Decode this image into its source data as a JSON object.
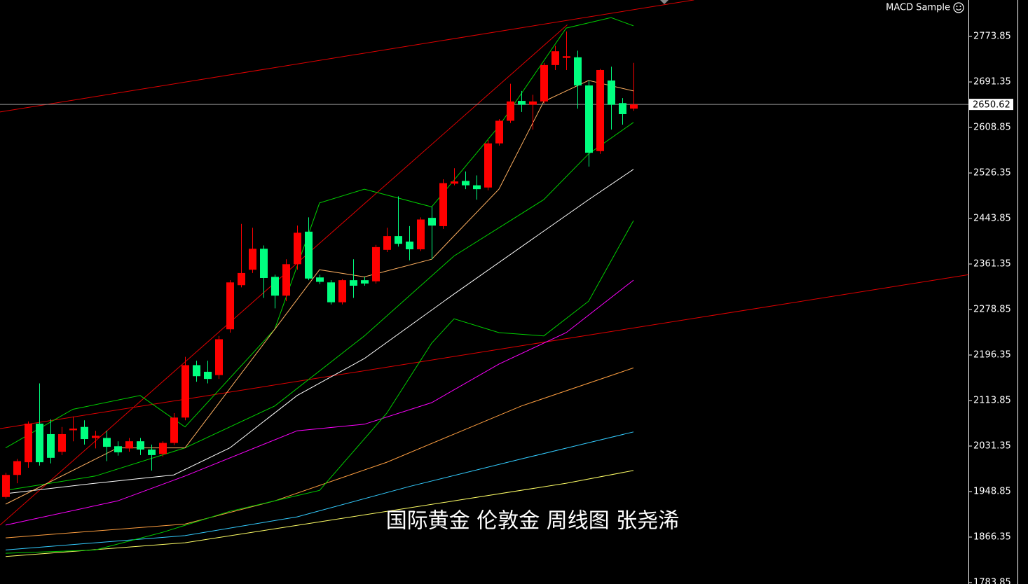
{
  "chart_data": {
    "type": "candlestick",
    "title": "MACD Sample",
    "annotation": "国际黄金 伦敦金 周线图 张尧浠",
    "xlim": [
      -0.5,
      85.875
    ],
    "ylim": [
      1781.3,
      2839.9
    ],
    "yticks": [
      2773.85,
      2691.35,
      2608.85,
      2526.35,
      2443.85,
      2361.35,
      2278.85,
      2196.35,
      2113.85,
      2031.35,
      1948.85,
      1866.35,
      1783.85
    ],
    "last_price": 2650.62,
    "up_color": "#ff0000",
    "down_color": "#00ff7f",
    "open": [
      1939,
      1979,
      2002,
      2072,
      2053,
      2021,
      2060,
      2066,
      2046,
      2046,
      2031,
      2027,
      2040,
      2025,
      2017,
      2037,
      2083,
      2178,
      2166,
      2160,
      2243,
      2323,
      2351,
      2389,
      2338,
      2304,
      2361,
      2420,
      2337,
      2328,
      2292,
      2332,
      2332,
      2330,
      2387,
      2412,
      2402,
      2388,
      2445,
      2430,
      2507,
      2512,
      2504,
      2500,
      2580,
      2621,
      2657,
      2650,
      2656,
      2722,
      2735,
      2736,
      2685,
      2566,
      2694,
      2653,
      2643
    ],
    "high": [
      1983,
      2008,
      2076,
      2145,
      2080,
      2066,
      2085,
      2078,
      2059,
      2059,
      2040,
      2046,
      2046,
      2034,
      2040,
      2091,
      2193,
      2186,
      2186,
      2231,
      2332,
      2434,
      2427,
      2395,
      2342,
      2370,
      2431,
      2446,
      2342,
      2332,
      2334,
      2370,
      2338,
      2396,
      2427,
      2484,
      2430,
      2446,
      2465,
      2515,
      2535,
      2529,
      2522,
      2586,
      2624,
      2688,
      2675,
      2668,
      2726,
      2757,
      2783,
      2748,
      2694,
      2715,
      2719,
      2662,
      2726
    ],
    "low": [
      1936,
      1964,
      1992,
      1996,
      2000,
      2015,
      2040,
      2034,
      2027,
      2004,
      2014,
      2021,
      2015,
      1987,
      2012,
      2033,
      2078,
      2148,
      2145,
      2153,
      2237,
      2319,
      2345,
      2300,
      2281,
      2294,
      2351,
      2332,
      2325,
      2288,
      2288,
      2300,
      2322,
      2326,
      2383,
      2393,
      2368,
      2385,
      2370,
      2425,
      2504,
      2497,
      2478,
      2495,
      2576,
      2617,
      2637,
      2605,
      2652,
      2713,
      2713,
      2643,
      2538,
      2561,
      2605,
      2614,
      2639
    ],
    "close": [
      1979,
      2004,
      2072,
      2002,
      2010,
      2053,
      2063,
      2044,
      2050,
      2030,
      2020,
      2040,
      2025,
      2015,
      2037,
      2083,
      2178,
      2158,
      2153,
      2225,
      2328,
      2345,
      2389,
      2336,
      2304,
      2361,
      2418,
      2335,
      2329,
      2292,
      2332,
      2322,
      2326,
      2392,
      2412,
      2398,
      2388,
      2442,
      2431,
      2508,
      2511,
      2504,
      2497,
      2580,
      2621,
      2656,
      2650,
      2656,
      2722,
      2747,
      2738,
      2685,
      2563,
      2713,
      2650,
      2633,
      2650.62
    ],
    "lines": [
      {
        "color": "#ffffff",
        "x": [
          0,
          8,
          15,
          20,
          26,
          32,
          40,
          48,
          52,
          56
        ],
        "values": [
          1945,
          1964,
          1979,
          2028,
          2123,
          2190,
          2307,
          2421,
          2478,
          2533
        ]
      },
      {
        "color": "#ff00ff",
        "x": [
          0,
          10,
          16,
          26,
          32,
          38,
          44,
          50,
          56
        ],
        "values": [
          1888,
          1932,
          1977,
          2059,
          2071,
          2110,
          2180,
          2237,
          2332
        ]
      },
      {
        "color": "#ff9f40",
        "x": [
          0,
          16,
          24,
          34,
          40,
          46,
          56
        ],
        "values": [
          1865,
          1890,
          1932,
          2002,
          2053,
          2104,
          2173
        ]
      },
      {
        "color": "#33ccff",
        "x": [
          0,
          16,
          26,
          36,
          46,
          56
        ],
        "values": [
          1843,
          1869,
          1903,
          1958,
          2008,
          2057
        ]
      },
      {
        "color": "#ffff66",
        "x": [
          0,
          16,
          28,
          40,
          50,
          56
        ],
        "values": [
          1831,
          1856,
          1894,
          1932,
          1964,
          1987
        ]
      },
      {
        "color": "#00d000",
        "x": [
          0,
          8,
          14,
          20,
          28,
          34,
          38,
          40,
          44,
          48,
          52,
          56
        ],
        "values": [
          1837,
          1843,
          1875,
          1913,
          1951,
          2091,
          2218,
          2262,
          2237,
          2231,
          2294,
          2440
        ]
      },
      {
        "color": "#00d000",
        "x": [
          0,
          8,
          16,
          24,
          32,
          40,
          48,
          52,
          56
        ],
        "values": [
          1951,
          1977,
          2028,
          2104,
          2231,
          2376,
          2478,
          2561,
          2618
        ]
      },
      {
        "color": "#00d000",
        "x": [
          0,
          6,
          12,
          16,
          24,
          28,
          32,
          38,
          44,
          50,
          54,
          56
        ],
        "values": [
          2028,
          2098,
          2123,
          2066,
          2243,
          2472,
          2497,
          2465,
          2611,
          2789,
          2808,
          2793
        ]
      },
      {
        "color": "#ffb060",
        "x": [
          0,
          10,
          16,
          24,
          28,
          32,
          38,
          44,
          48,
          52,
          56
        ],
        "values": [
          1926,
          2028,
          2028,
          2243,
          2351,
          2338,
          2370,
          2497,
          2656,
          2694,
          2675
        ]
      }
    ],
    "trendlines": [
      {
        "color": "#e00000",
        "x": [
          -0.5,
          61.4
        ],
        "values": [
          2637,
          2840
        ]
      },
      {
        "color": "#e00000",
        "x": [
          -0.5,
          85.9
        ],
        "values": [
          2063,
          2342
        ]
      },
      {
        "color": "#e00000",
        "x": [
          -0.5,
          50.1
        ],
        "values": [
          1888,
          2795
        ]
      }
    ]
  }
}
